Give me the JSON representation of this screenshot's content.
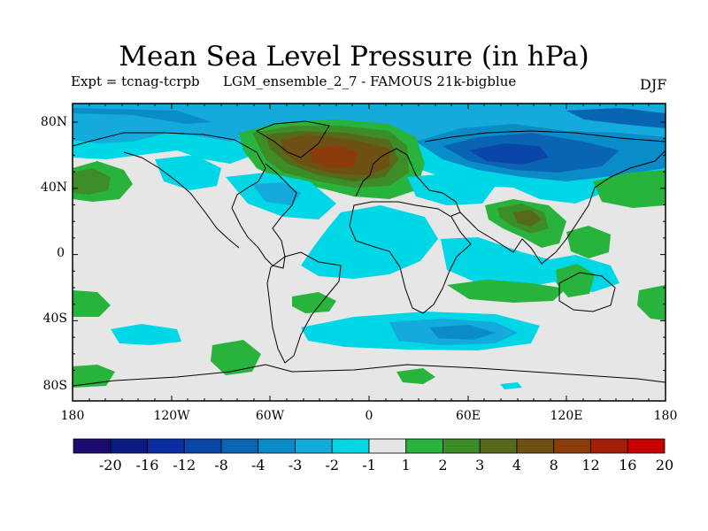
{
  "title": "Mean Sea Level Pressure (in hPa)",
  "experiment": "Expt = tcnag-tcrpb",
  "ensemble": "LGM_ensemble_2_7 - FAMOUS 21k-bigblue",
  "season": "DJF",
  "map": {
    "lat_labels": [
      "80N",
      "40N",
      "0",
      "40S",
      "80S"
    ],
    "lon_labels": [
      "180",
      "120W",
      "60W",
      "0",
      "60E",
      "120E",
      "180"
    ],
    "ocean_color": "#e6e6e6",
    "coast_color": "#000000"
  },
  "colorbar": {
    "colors": [
      "#1c0a6e",
      "#0a1a82",
      "#0a2ea0",
      "#0a46aa",
      "#0a64b4",
      "#0a8cc8",
      "#14aadc",
      "#00d7e6",
      "#e6e6e6",
      "#28b43c",
      "#3c8c28",
      "#56691a",
      "#6e5014",
      "#8c3c0a",
      "#a51e0a",
      "#c80000"
    ],
    "labels": [
      "-20",
      "-16",
      "-12",
      "-8",
      "-4",
      "-3",
      "-2",
      "-1",
      "1",
      "2",
      "3",
      "4",
      "8",
      "12",
      "16",
      "20"
    ]
  },
  "anomaly_regions": [
    {
      "name": "north-atlantic-high",
      "level": "8"
    },
    {
      "name": "north-atlantic-ring",
      "level": "4"
    },
    {
      "name": "north-atlantic-outer",
      "level": "2"
    },
    {
      "name": "siberian-low",
      "level": "-4"
    },
    {
      "name": "arctic-low",
      "level": "-3"
    },
    {
      "name": "north-pacific-high",
      "level": "3"
    },
    {
      "name": "tibet-high",
      "level": "4"
    },
    {
      "name": "southern-ocean-low",
      "level": "-3"
    },
    {
      "name": "tropical-atlantic-low",
      "level": "-2"
    }
  ]
}
